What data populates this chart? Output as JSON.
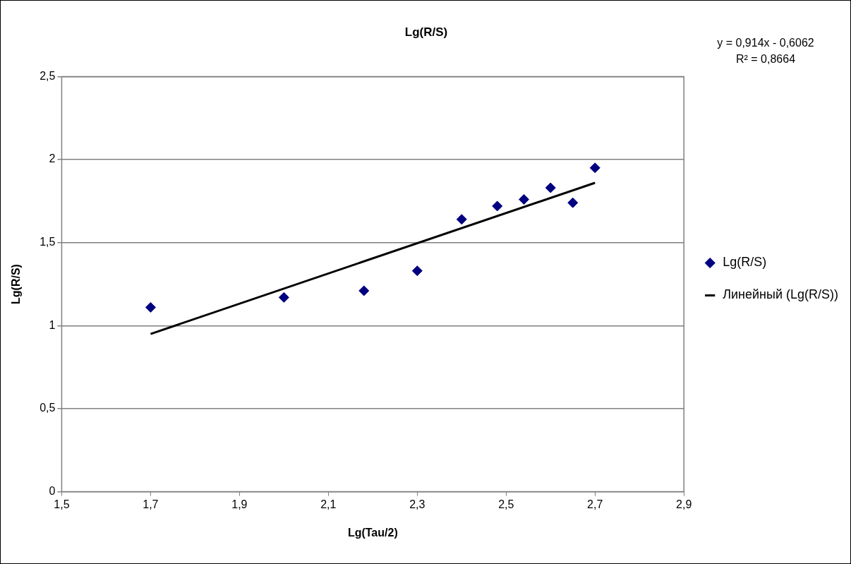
{
  "chart_data": {
    "type": "scatter",
    "title": "Lg(R/S)",
    "xlabel": "Lg(Tau/2)",
    "ylabel": "Lg(R/S)",
    "annotations": [
      "y = 0,914x - 0,6062",
      "R² = 0,8664"
    ],
    "x": [
      1.7,
      2.0,
      2.18,
      2.3,
      2.4,
      2.48,
      2.54,
      2.6,
      2.65,
      2.7
    ],
    "series": [
      {
        "name": "Lg(R/S)",
        "color": "#000080",
        "marker": "diamond",
        "values": [
          1.11,
          1.17,
          1.21,
          1.33,
          1.64,
          1.72,
          1.76,
          1.83,
          1.74,
          1.95
        ]
      },
      {
        "name": "Линейный (Lg(R/S))",
        "type": "line",
        "marker": "none",
        "color": "#000000",
        "x": [
          1.7,
          2.7
        ],
        "values": [
          0.95,
          1.86
        ]
      }
    ],
    "legend": "right",
    "grid": "y",
    "xlim": [
      1.5,
      2.9
    ],
    "xticks": [
      {
        "value": 1.5,
        "label": "1,5"
      },
      {
        "value": 1.7,
        "label": "1,7"
      },
      {
        "value": 1.9,
        "label": "1,9"
      },
      {
        "value": 2.1,
        "label": "2,1"
      },
      {
        "value": 2.3,
        "label": "2,3"
      },
      {
        "value": 2.5,
        "label": "2,5"
      },
      {
        "value": 2.7,
        "label": "2,7"
      },
      {
        "value": 2.9,
        "label": "2,9"
      }
    ],
    "ylim": [
      0,
      2.5
    ],
    "yticks": [
      0,
      {
        "value": 0.5,
        "label": "0,5"
      },
      1,
      {
        "value": 1.5,
        "label": "1,5"
      },
      2,
      {
        "value": 2.5,
        "label": "2,5"
      }
    ]
  }
}
